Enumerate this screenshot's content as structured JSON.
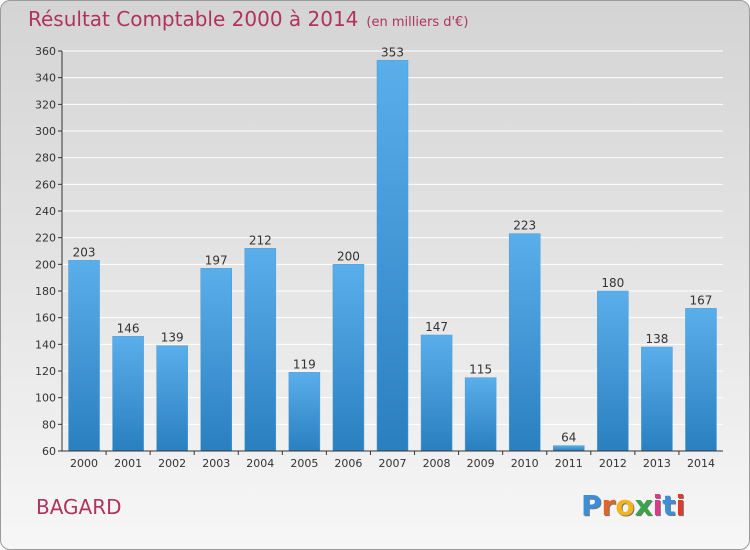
{
  "header": {
    "title": "Résultat Comptable 2000 à 2014",
    "unit": "(en milliers d'€)"
  },
  "footer": {
    "commune": "BAGARD",
    "logo": "Proxiti"
  },
  "colors": {
    "title": "#b0325e",
    "bar_top": "#5aaeea",
    "bar_bottom": "#2a7fbf",
    "grid": "#ffffff"
  },
  "chart_data": {
    "type": "bar",
    "categories": [
      "2000",
      "2001",
      "2002",
      "2003",
      "2004",
      "2005",
      "2006",
      "2007",
      "2008",
      "2009",
      "2010",
      "2011",
      "2012",
      "2013",
      "2014"
    ],
    "values": [
      203,
      146,
      139,
      197,
      212,
      119,
      200,
      353,
      147,
      115,
      223,
      64,
      180,
      138,
      167
    ],
    "ylim": [
      60,
      360
    ],
    "yticks": [
      60,
      80,
      100,
      120,
      140,
      160,
      180,
      200,
      220,
      240,
      260,
      280,
      300,
      320,
      340,
      360
    ],
    "grid": true
  }
}
